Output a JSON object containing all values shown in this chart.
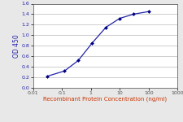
{
  "x": [
    0.031,
    0.123,
    0.37,
    1.11,
    3.33,
    10,
    30,
    100
  ],
  "y": [
    0.22,
    0.32,
    0.52,
    0.85,
    1.15,
    1.32,
    1.4,
    1.45
  ],
  "line_color": "#2222AA",
  "marker_color": "#000080",
  "marker": "D",
  "marker_size": 2.0,
  "xlim": [
    0.01,
    1000
  ],
  "ylim": [
    0.0,
    1.6
  ],
  "yticks": [
    0.0,
    0.2,
    0.4,
    0.6,
    0.8,
    1.0,
    1.2,
    1.4,
    1.6
  ],
  "xticks": [
    0.01,
    0.1,
    1,
    10,
    100,
    1000
  ],
  "xtick_labels": [
    "0.01",
    "0.1",
    "1",
    "10",
    "100",
    "1000"
  ],
  "xlabel": "Recombinant Protein Concentration (ng/ml)",
  "ylabel": "OD 450",
  "xlabel_color": "#CC3300",
  "ylabel_color": "#2222AA",
  "ytick_label_color": "#2222AA",
  "xtick_label_color": "#555555",
  "grid_color": "#bbbbbb",
  "bg_color": "#e8e8e8",
  "plot_bg_color": "#ffffff",
  "line_width": 0.9,
  "xlabel_fontsize": 5.0,
  "ylabel_fontsize": 5.5,
  "tick_fontsize": 4.5
}
